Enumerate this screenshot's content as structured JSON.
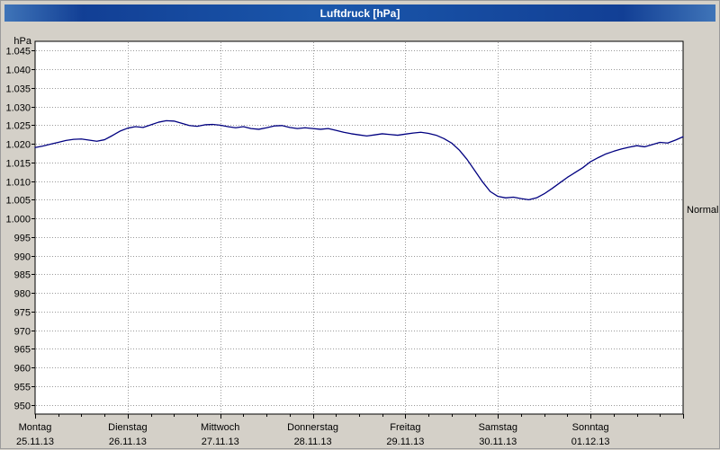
{
  "title": "Luftdruck [hPa]",
  "window": {
    "background_color": "#d4d0c8",
    "titlebar_color": "#1a57ab",
    "title_text_color": "#ffffff"
  },
  "chart_data": {
    "type": "line",
    "title": "Luftdruck [hPa]",
    "xlabel": "",
    "ylabel": "hPa",
    "ylim": [
      947.5,
      1047.5
    ],
    "grid": {
      "enabled": true,
      "color": "#9a9a9a",
      "style": "dotted"
    },
    "legend_position": "none",
    "plot_background": "#ffffff",
    "y_ticks": [
      {
        "value": 1045,
        "label": "1.045"
      },
      {
        "value": 1040,
        "label": "1.040"
      },
      {
        "value": 1035,
        "label": "1.035"
      },
      {
        "value": 1030,
        "label": "1.030"
      },
      {
        "value": 1025,
        "label": "1.025"
      },
      {
        "value": 1020,
        "label": "1.020"
      },
      {
        "value": 1015,
        "label": "1.015"
      },
      {
        "value": 1010,
        "label": "1.010"
      },
      {
        "value": 1005,
        "label": "1.005"
      },
      {
        "value": 1000,
        "label": "1.000"
      },
      {
        "value": 995,
        "label": "995"
      },
      {
        "value": 990,
        "label": "990"
      },
      {
        "value": 985,
        "label": "985"
      },
      {
        "value": 980,
        "label": "980"
      },
      {
        "value": 975,
        "label": "975"
      },
      {
        "value": 970,
        "label": "970"
      },
      {
        "value": 965,
        "label": "965"
      },
      {
        "value": 960,
        "label": "960"
      },
      {
        "value": 955,
        "label": "955"
      },
      {
        "value": 950,
        "label": "950"
      }
    ],
    "days": [
      {
        "name": "Montag",
        "date": "25.11.13"
      },
      {
        "name": "Dienstag",
        "date": "26.11.13"
      },
      {
        "name": "Mittwoch",
        "date": "27.11.13"
      },
      {
        "name": "Donnerstag",
        "date": "28.11.13"
      },
      {
        "name": "Freitag",
        "date": "29.11.13"
      },
      {
        "name": "Samstag",
        "date": "30.11.13"
      },
      {
        "name": "Sonntag",
        "date": "01.12.13"
      }
    ],
    "x_total_hours": 168,
    "series": [
      {
        "name": "Luftdruck",
        "color": "#000080",
        "x_start_hour": 0,
        "x_step_hours": 2,
        "values": [
          1019.0,
          1019.4,
          1019.9,
          1020.4,
          1020.9,
          1021.2,
          1021.3,
          1021.0,
          1020.7,
          1021.1,
          1022.2,
          1023.4,
          1024.2,
          1024.6,
          1024.4,
          1025.1,
          1025.8,
          1026.2,
          1026.1,
          1025.5,
          1024.9,
          1024.7,
          1025.1,
          1025.2,
          1025.0,
          1024.6,
          1024.3,
          1024.6,
          1024.1,
          1023.9,
          1024.3,
          1024.8,
          1024.9,
          1024.4,
          1024.1,
          1024.3,
          1024.1,
          1023.9,
          1024.1,
          1023.6,
          1023.1,
          1022.7,
          1022.4,
          1022.1,
          1022.4,
          1022.7,
          1022.5,
          1022.3,
          1022.6,
          1022.9,
          1023.1,
          1022.8,
          1022.3,
          1021.4,
          1020.2,
          1018.3,
          1015.8,
          1012.8,
          1009.8,
          1007.2,
          1005.9,
          1005.5,
          1005.7,
          1005.3,
          1005.0,
          1005.5,
          1006.6,
          1008.0,
          1009.5,
          1011.0,
          1012.3,
          1013.6,
          1015.2,
          1016.3,
          1017.3,
          1018.0,
          1018.6,
          1019.1,
          1019.5,
          1019.2,
          1019.8,
          1020.4,
          1020.2,
          1021.0,
          1021.9
        ]
      }
    ],
    "annotations": [
      {
        "text": "Normal",
        "y": 1002.5,
        "side": "right"
      }
    ]
  }
}
